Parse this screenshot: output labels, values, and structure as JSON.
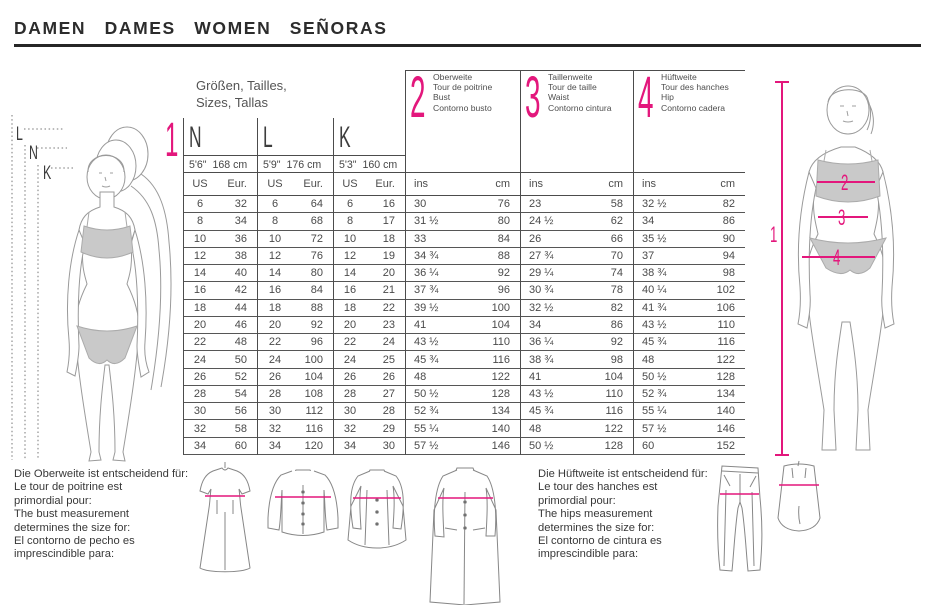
{
  "title": "DAMEN DAMES WOMEN SEÑORAS",
  "accent_pink": "#e3177c",
  "size_table": {
    "caption": [
      "Größen, Tailles,",
      "Sizes, Tallas"
    ],
    "height_section_num": "1",
    "size_columns": [
      {
        "letter": "N",
        "height": "5'6\"  168 cm",
        "unit1": "US",
        "unit2": "Eur."
      },
      {
        "letter": "L",
        "height": "5'9\"  176 cm",
        "unit1": "US",
        "unit2": "Eur."
      },
      {
        "letter": "K",
        "height": "5'3\"  160 cm",
        "unit1": "US",
        "unit2": "Eur."
      }
    ],
    "measure_columns": [
      {
        "num": "2",
        "labels": [
          "Oberweite",
          "Tour de poitrine",
          "Bust",
          "Contorno busto"
        ],
        "unit1": "ins",
        "unit2": "cm"
      },
      {
        "num": "3",
        "labels": [
          "Taillenweite",
          "Tour de taille",
          "Waist",
          "Contorno cintura"
        ],
        "unit1": "ins",
        "unit2": "cm"
      },
      {
        "num": "4",
        "labels": [
          "Hüftweite",
          "Tour des hanches",
          "Hip",
          "Contorno cadera"
        ],
        "unit1": "ins",
        "unit2": "cm"
      }
    ],
    "rows": [
      [
        "6",
        "32",
        "6",
        "64",
        "6",
        "16",
        "30",
        "76",
        "23",
        "58",
        "32 ½",
        "82"
      ],
      [
        "8",
        "34",
        "8",
        "68",
        "8",
        "17",
        "31 ½",
        "80",
        "24 ½",
        "62",
        "34",
        "86"
      ],
      [
        "10",
        "36",
        "10",
        "72",
        "10",
        "18",
        "33",
        "84",
        "26",
        "66",
        "35 ½",
        "90"
      ],
      [
        "12",
        "38",
        "12",
        "76",
        "12",
        "19",
        "34 ¾",
        "88",
        "27 ¾",
        "70",
        "37",
        "94"
      ],
      [
        "14",
        "40",
        "14",
        "80",
        "14",
        "20",
        "36 ¼",
        "92",
        "29 ¼",
        "74",
        "38 ¾",
        "98"
      ],
      [
        "16",
        "42",
        "16",
        "84",
        "16",
        "21",
        "37 ¾",
        "96",
        "30 ¾",
        "78",
        "40 ¼",
        "102"
      ],
      [
        "18",
        "44",
        "18",
        "88",
        "18",
        "22",
        "39 ½",
        "100",
        "32 ½",
        "82",
        "41 ¾",
        "106"
      ],
      [
        "20",
        "46",
        "20",
        "92",
        "20",
        "23",
        "41",
        "104",
        "34",
        "86",
        "43 ½",
        "110"
      ],
      [
        "22",
        "48",
        "22",
        "96",
        "22",
        "24",
        "43 ½",
        "110",
        "36 ¼",
        "92",
        "45 ¾",
        "116"
      ],
      [
        "24",
        "50",
        "24",
        "100",
        "24",
        "25",
        "45 ¾",
        "116",
        "38 ¾",
        "98",
        "48",
        "122"
      ],
      [
        "26",
        "52",
        "26",
        "104",
        "26",
        "26",
        "48",
        "122",
        "41",
        "104",
        "50 ½",
        "128"
      ],
      [
        "28",
        "54",
        "28",
        "108",
        "28",
        "27",
        "50 ½",
        "128",
        "43 ½",
        "110",
        "52 ¾",
        "134"
      ],
      [
        "30",
        "56",
        "30",
        "112",
        "30",
        "28",
        "52 ¾",
        "134",
        "45 ¾",
        "116",
        "55 ¼",
        "140"
      ],
      [
        "32",
        "58",
        "32",
        "116",
        "32",
        "29",
        "55 ¼",
        "140",
        "48",
        "122",
        "57 ½",
        "146"
      ],
      [
        "34",
        "60",
        "34",
        "120",
        "34",
        "30",
        "57 ½",
        "146",
        "50 ½",
        "128",
        "60",
        "152"
      ]
    ]
  },
  "left_figure": {
    "height_labels": [
      "L",
      "N",
      "K"
    ]
  },
  "right_figure": {
    "measure_labels": [
      "1",
      "2",
      "3",
      "4"
    ]
  },
  "note_bust": {
    "lines": [
      "Die Oberweite ist entscheidend für:",
      "Le tour de poitrine est",
      "primordial pour:",
      "The bust measurement",
      "determines the size for:",
      "El contorno de pecho es",
      "imprescindible para:"
    ]
  },
  "note_hip": {
    "lines": [
      "Die Hüftweite ist entscheidend für:",
      "Le tour des hanches est",
      "primordial pour:",
      "The hips measurement",
      "determines the size for:",
      "El contorno de cintura es",
      "imprescindible para:"
    ]
  }
}
